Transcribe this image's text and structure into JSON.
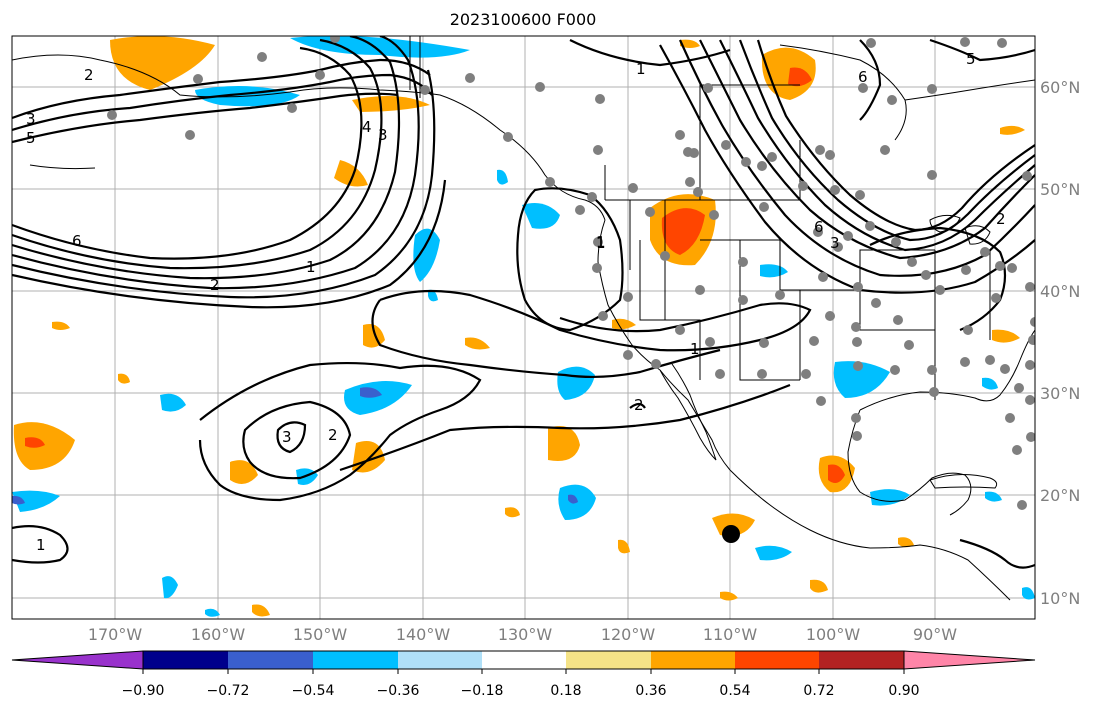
{
  "title": "2023100600 F000",
  "lon_labels": [
    "170°W",
    "160°W",
    "150°W",
    "140°W",
    "130°W",
    "120°W",
    "110°W",
    "100°W",
    "90°W"
  ],
  "lat_labels": [
    "60°N",
    "50°N",
    "40°N",
    "30°N",
    "20°N",
    "10°N"
  ],
  "colorbar": {
    "ticks": [
      "−0.90",
      "−0.72",
      "−0.54",
      "−0.36",
      "−0.18",
      "0.18",
      "0.36",
      "0.54",
      "0.72",
      "0.90"
    ],
    "colors": [
      "#9932cc",
      "#00008b",
      "#3a5fcd",
      "#00bfff",
      "#b0e0f8",
      "#ffffff",
      "#f5e387",
      "#ffa500",
      "#ff4500",
      "#b22222",
      "#ff85a8"
    ]
  },
  "contour_labels": [
    "2",
    "3",
    "5",
    "6",
    "2",
    "1",
    "1",
    "3",
    "4",
    "1",
    "6",
    "5",
    "6",
    "3",
    "2",
    "1",
    "2",
    "1",
    "3",
    "2",
    "1"
  ],
  "marker": "station-marker"
}
